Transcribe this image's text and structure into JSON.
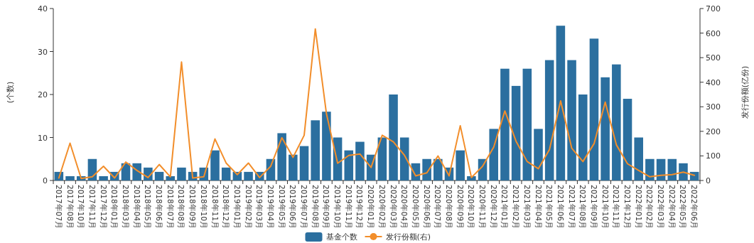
{
  "chart_data": {
    "type": "bar",
    "ylabel": "(个数)",
    "y2label": "发行份额(亿份)",
    "ylim": [
      0,
      40
    ],
    "yticks": [
      0,
      10,
      20,
      30,
      40
    ],
    "y2lim": [
      0,
      700
    ],
    "y2ticks": [
      0,
      100,
      200,
      300,
      400,
      500,
      600,
      700
    ],
    "legend": "bottom",
    "categories": [
      "2017年07月",
      "2017年08月",
      "2017年10月",
      "2017年11月",
      "2017年12月",
      "2018年01月",
      "2018年03月",
      "2018年04月",
      "2018年05月",
      "2018年06月",
      "2018年07月",
      "2018年08月",
      "2018年09月",
      "2018年10月",
      "2018年11月",
      "2018年12月",
      "2019年01月",
      "2019年02月",
      "2019年03月",
      "2019年04月",
      "2019年05月",
      "2019年06月",
      "2019年07月",
      "2019年08月",
      "2019年09月",
      "2019年10月",
      "2019年11月",
      "2019年12月",
      "2020年01月",
      "2020年02月",
      "2020年03月",
      "2020年04月",
      "2020年05月",
      "2020年06月",
      "2020年07月",
      "2020年08月",
      "2020年09月",
      "2020年10月",
      "2020年11月",
      "2020年12月",
      "2021年01月",
      "2021年02月",
      "2021年03月",
      "2021年04月",
      "2021年05月",
      "2021年06月",
      "2021年07月",
      "2021年08月",
      "2021年09月",
      "2021年10月",
      "2021年11月",
      "2021年12月",
      "2022年01月",
      "2022年02月",
      "2022年03月",
      "2022年04月",
      "2022年05月",
      "2022年06月"
    ],
    "series": [
      {
        "name": "基金个数",
        "color": "#2b6f9f",
        "values": [
          2,
          1,
          1,
          5,
          1,
          2,
          4,
          4,
          3,
          2,
          1,
          3,
          2,
          3,
          7,
          3,
          2,
          2,
          2,
          5,
          11,
          6,
          8,
          14,
          16,
          10,
          7,
          9,
          6,
          10,
          20,
          10,
          4,
          5,
          5,
          3,
          7,
          1,
          5,
          12,
          26,
          22,
          26,
          12,
          28,
          36,
          28,
          20,
          33,
          24,
          27,
          19,
          10,
          5,
          5,
          5,
          4,
          2
        ]
      },
      {
        "name": "发行份额(右)",
        "type": "line",
        "axis": "y2",
        "color": "#f28e2b",
        "values": [
          10,
          152,
          8,
          15,
          58,
          10,
          75,
          41,
          12,
          65,
          15,
          482,
          10,
          15,
          169,
          71,
          24,
          71,
          12,
          58,
          174,
          94,
          184,
          617,
          271,
          70,
          102,
          108,
          53,
          184,
          157,
          102,
          19,
          31,
          100,
          19,
          223,
          12,
          58,
          136,
          283,
          160,
          77,
          48,
          126,
          324,
          131,
          77,
          150,
          319,
          145,
          68,
          41,
          15,
          21,
          24,
          34,
          21
        ]
      }
    ]
  }
}
